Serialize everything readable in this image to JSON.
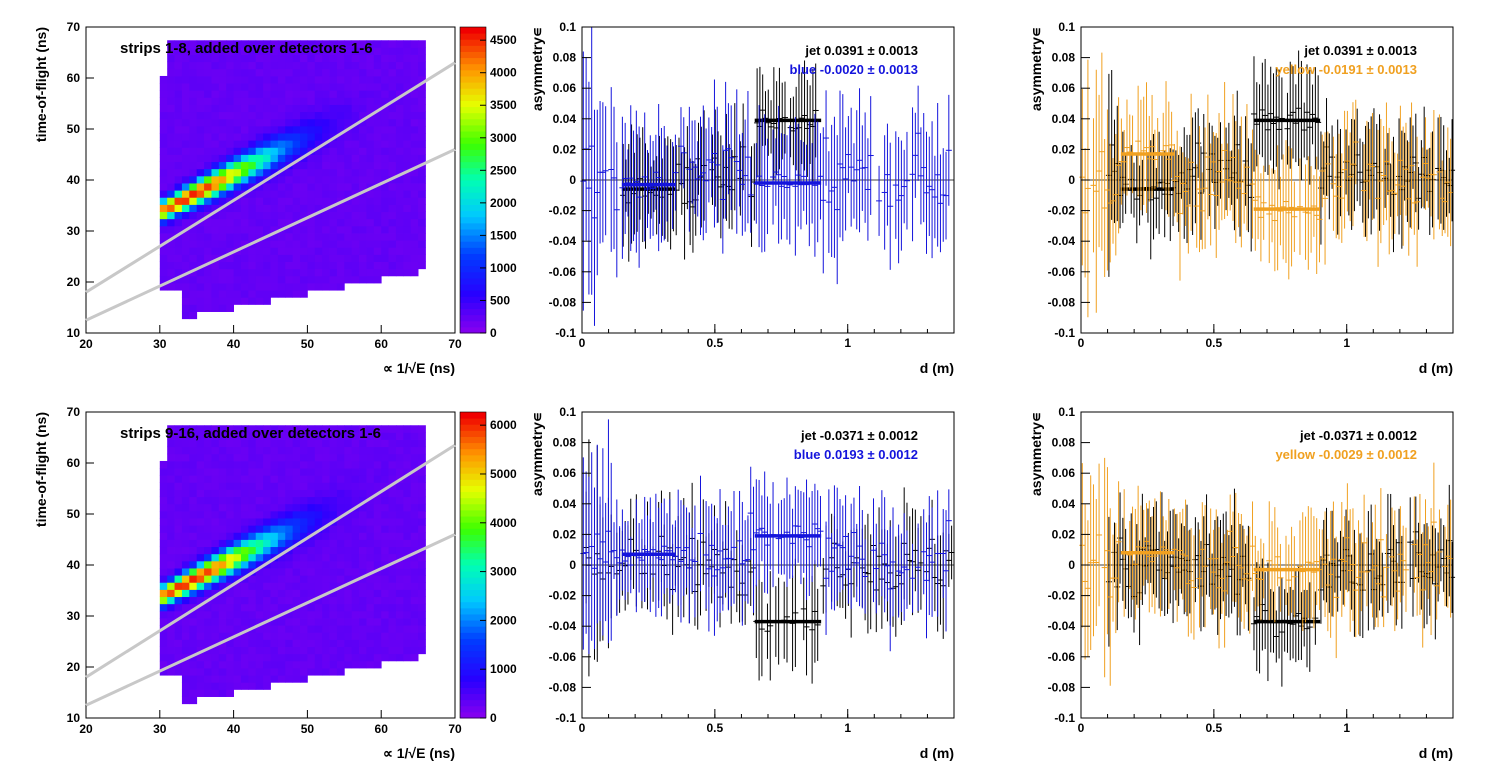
{
  "page": {
    "colors": {
      "blue": "#1414dc",
      "yellow": "#f0a020",
      "black": "#000000",
      "guide": "#c8c8c8"
    }
  },
  "chart_data": [
    {
      "id": "tof-top",
      "type": "heatmap",
      "title": "strips 1-8, added over detectors 1-6",
      "xlabel": "∝ 1/√E (ns)",
      "ylabel": "time-of-flight (ns)",
      "xlim": [
        20,
        70
      ],
      "ylim": [
        10,
        70
      ],
      "xticks": [
        20,
        30,
        40,
        50,
        60,
        70
      ],
      "yticks": [
        10,
        20,
        30,
        40,
        50,
        60,
        70
      ],
      "zmax": 4500,
      "zticks": [
        0,
        500,
        1000,
        1500,
        2000,
        2500,
        3000,
        3500,
        4000,
        4500
      ],
      "grid": false,
      "band_lines": [
        {
          "x": [
            20,
            70
          ],
          "y": [
            18,
            63
          ]
        },
        {
          "x": [
            20,
            70
          ],
          "y": [
            12.5,
            46
          ]
        }
      ]
    },
    {
      "id": "asym-blue-top",
      "type": "scatter",
      "xlabel": "d (m)",
      "ylabel": "asymmetry∊",
      "xlim": [
        0,
        1.4
      ],
      "ylim": [
        -0.1,
        0.1
      ],
      "xticks": [
        0,
        0.5,
        1
      ],
      "yticks": [
        -0.1,
        -0.08,
        -0.06,
        -0.04,
        -0.02,
        0,
        0.02,
        0.04,
        0.06,
        0.08,
        0.1
      ],
      "legend": [
        {
          "label": "jet  0.0391 ± 0.0013",
          "color": "#000000"
        },
        {
          "label": "blue -0.0020 ± 0.0013",
          "color": "#1414dc"
        }
      ],
      "series": [
        {
          "color": "#000000",
          "x_range": [
            0.15,
            0.9
          ],
          "center": 0.0,
          "amp": 0.035,
          "err": 0.028,
          "fits": [
            {
              "x": [
                0.15,
                0.35
              ],
              "y": -0.006
            },
            {
              "x": [
                0.65,
                0.9
              ],
              "y": 0.039
            }
          ]
        },
        {
          "color": "#1414dc",
          "x_range": [
            0.0,
            1.4
          ],
          "center": 0.0,
          "amp": 0.045,
          "err": 0.035,
          "fits": [
            {
              "x": [
                0.15,
                0.35
              ],
              "y": -0.003
            },
            {
              "x": [
                0.65,
                0.9
              ],
              "y": -0.002
            }
          ]
        }
      ]
    },
    {
      "id": "asym-yellow-top",
      "type": "scatter",
      "xlabel": "d (m)",
      "ylabel": "asymmetry∊",
      "xlim": [
        0,
        1.4
      ],
      "ylim": [
        -0.1,
        0.1
      ],
      "xticks": [
        0,
        0.5,
        1
      ],
      "yticks": [
        -0.1,
        -0.08,
        -0.06,
        -0.04,
        -0.02,
        0,
        0.02,
        0.04,
        0.06,
        0.08,
        0.1
      ],
      "legend": [
        {
          "label": "jet  0.0391 ± 0.0013",
          "color": "#000000"
        },
        {
          "label": "yellow -0.0191 ± 0.0013",
          "color": "#f0a020"
        }
      ],
      "series": [
        {
          "color": "#000000",
          "x_range": [
            0.1,
            1.4
          ],
          "center": 0.005,
          "amp": 0.035,
          "err": 0.028,
          "fits": [
            {
              "x": [
                0.15,
                0.35
              ],
              "y": -0.006
            },
            {
              "x": [
                0.65,
                0.9
              ],
              "y": 0.039
            }
          ]
        },
        {
          "color": "#f0a020",
          "x_range": [
            0.0,
            1.4
          ],
          "center": 0.0,
          "amp": 0.04,
          "err": 0.032,
          "fits": [
            {
              "x": [
                0.15,
                0.35
              ],
              "y": 0.017
            },
            {
              "x": [
                0.65,
                0.9
              ],
              "y": -0.019
            }
          ]
        }
      ]
    },
    {
      "id": "tof-bottom",
      "type": "heatmap",
      "title": "strips 9-16, added over detectors 1-6",
      "xlabel": "∝ 1/√E (ns)",
      "ylabel": "time-of-flight (ns)",
      "xlim": [
        20,
        70
      ],
      "ylim": [
        10,
        70
      ],
      "xticks": [
        20,
        30,
        40,
        50,
        60,
        70
      ],
      "yticks": [
        10,
        20,
        30,
        40,
        50,
        60,
        70
      ],
      "zmax": 6000,
      "zticks": [
        0,
        1000,
        2000,
        3000,
        4000,
        5000,
        6000
      ],
      "grid": false,
      "band_lines": [
        {
          "x": [
            20,
            70
          ],
          "y": [
            18,
            63.5
          ]
        },
        {
          "x": [
            20,
            70
          ],
          "y": [
            12.5,
            46
          ]
        }
      ]
    },
    {
      "id": "asym-blue-bottom",
      "type": "scatter",
      "xlabel": "d (m)",
      "ylabel": "asymmetry∊",
      "xlim": [
        0,
        1.4
      ],
      "ylim": [
        -0.1,
        0.1
      ],
      "xticks": [
        0,
        0.5,
        1
      ],
      "yticks": [
        -0.1,
        -0.08,
        -0.06,
        -0.04,
        -0.02,
        0,
        0.02,
        0.04,
        0.06,
        0.08,
        0.1
      ],
      "legend": [
        {
          "label": "jet -0.0371 ± 0.0012",
          "color": "#000000"
        },
        {
          "label": "blue  0.0193 ± 0.0012",
          "color": "#1414dc"
        }
      ],
      "series": [
        {
          "color": "#000000",
          "x_range": [
            0.0,
            1.4
          ],
          "center": 0.0,
          "amp": 0.035,
          "err": 0.028,
          "fits": [
            {
              "x": [
                0.65,
                0.9
              ],
              "y": -0.037
            }
          ]
        },
        {
          "color": "#1414dc",
          "x_range": [
            0.0,
            1.4
          ],
          "center": 0.005,
          "amp": 0.035,
          "err": 0.03,
          "fits": [
            {
              "x": [
                0.15,
                0.35
              ],
              "y": 0.007
            },
            {
              "x": [
                0.65,
                0.9
              ],
              "y": 0.019
            }
          ]
        }
      ]
    },
    {
      "id": "asym-yellow-bottom",
      "type": "scatter",
      "xlabel": "d (m)",
      "ylabel": "asymmetry∊",
      "xlim": [
        0,
        1.4
      ],
      "ylim": [
        -0.1,
        0.1
      ],
      "xticks": [
        0,
        0.5,
        1
      ],
      "yticks": [
        -0.1,
        -0.08,
        -0.06,
        -0.04,
        -0.02,
        0,
        0.02,
        0.04,
        0.06,
        0.08,
        0.1
      ],
      "legend": [
        {
          "label": "jet -0.0371 ± 0.0012",
          "color": "#000000"
        },
        {
          "label": "yellow -0.0029 ± 0.0012",
          "color": "#f0a020"
        }
      ],
      "series": [
        {
          "color": "#000000",
          "x_range": [
            0.1,
            1.4
          ],
          "center": 0.0,
          "amp": 0.035,
          "err": 0.028,
          "fits": [
            {
              "x": [
                0.65,
                0.9
              ],
              "y": -0.037
            }
          ]
        },
        {
          "color": "#f0a020",
          "x_range": [
            0.0,
            1.4
          ],
          "center": 0.0,
          "amp": 0.038,
          "err": 0.03,
          "fits": [
            {
              "x": [
                0.15,
                0.35
              ],
              "y": 0.008
            },
            {
              "x": [
                0.65,
                0.9
              ],
              "y": -0.003
            }
          ]
        }
      ]
    }
  ]
}
